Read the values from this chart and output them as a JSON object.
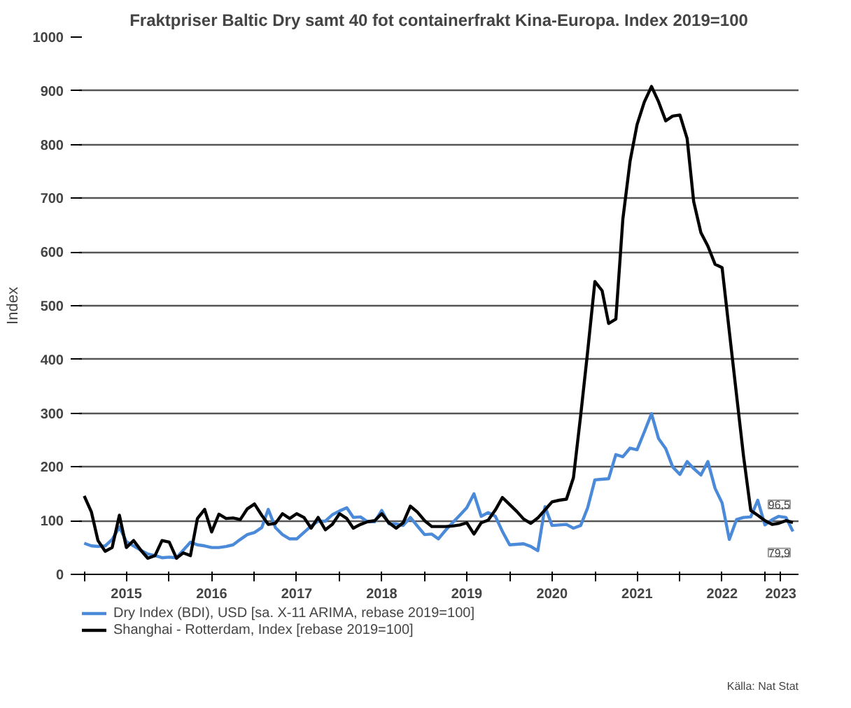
{
  "chart_data": {
    "type": "line",
    "title": "Fraktpriser Baltic Dry samt 40 fot containerfrakt Kina-Europa. Index 2019=100",
    "ylabel": "Index",
    "x": [
      "2015-01",
      "2015-02",
      "2015-03",
      "2015-04",
      "2015-05",
      "2015-06",
      "2015-07",
      "2015-08",
      "2015-09",
      "2015-10",
      "2015-11",
      "2015-12",
      "2016-01",
      "2016-02",
      "2016-03",
      "2016-04",
      "2016-05",
      "2016-06",
      "2016-07",
      "2016-08",
      "2016-09",
      "2016-10",
      "2016-11",
      "2016-12",
      "2017-01",
      "2017-02",
      "2017-03",
      "2017-04",
      "2017-05",
      "2017-06",
      "2017-07",
      "2017-08",
      "2017-09",
      "2017-10",
      "2017-11",
      "2017-12",
      "2018-01",
      "2018-02",
      "2018-03",
      "2018-04",
      "2018-05",
      "2018-06",
      "2018-07",
      "2018-08",
      "2018-09",
      "2018-10",
      "2018-11",
      "2018-12",
      "2019-01",
      "2019-02",
      "2019-03",
      "2019-04",
      "2019-05",
      "2019-06",
      "2019-07",
      "2019-08",
      "2019-09",
      "2019-10",
      "2019-11",
      "2019-12",
      "2020-01",
      "2020-02",
      "2020-03",
      "2020-04",
      "2020-05",
      "2020-06",
      "2020-07",
      "2020-08",
      "2020-09",
      "2020-10",
      "2020-11",
      "2020-12",
      "2021-01",
      "2021-02",
      "2021-03",
      "2021-04",
      "2021-05",
      "2021-06",
      "2021-07",
      "2021-08",
      "2021-09",
      "2021-10",
      "2021-11",
      "2021-12",
      "2022-01",
      "2022-02",
      "2022-03",
      "2022-04",
      "2022-05",
      "2022-06",
      "2022-07",
      "2022-08",
      "2022-09",
      "2022-10",
      "2022-11",
      "2022-12",
      "2023-01",
      "2023-02",
      "2023-03",
      "2023-04",
      "2023-05"
    ],
    "series": [
      {
        "name": "Dry Index (BDI), USD [sa. X-11 ARIMA, rebase 2019=100]",
        "color": "#4a8ad8",
        "values": [
          58,
          53,
          52,
          53,
          65,
          88,
          61,
          53,
          45,
          38,
          35,
          31,
          32,
          31,
          45,
          60,
          55,
          53,
          50,
          50,
          52,
          55,
          65,
          74,
          78,
          87,
          121,
          87,
          74,
          66,
          66,
          78,
          90,
          99,
          99,
          111,
          118,
          124,
          106,
          107,
          98,
          98,
          119,
          94,
          94,
          91,
          106,
          90,
          74,
          75,
          66,
          82,
          96,
          110,
          124,
          150,
          108,
          115,
          108,
          80,
          55,
          56,
          57,
          52,
          44,
          126,
          91,
          92,
          93,
          86,
          91,
          124,
          176,
          177,
          178,
          223,
          219,
          235,
          232,
          265,
          299,
          253,
          234,
          200,
          186,
          210,
          197,
          185,
          210,
          160,
          133,
          65,
          102,
          106,
          107,
          138,
          92,
          102,
          108,
          106,
          79.9
        ]
      },
      {
        "name": "Shanghai - Rotterdam, Index [rebase 2019=100]",
        "color": "#000000",
        "values": [
          146,
          116,
          63,
          43,
          50,
          110,
          50,
          63,
          45,
          30,
          35,
          63,
          60,
          30,
          40,
          35,
          104,
          121,
          79,
          112,
          104,
          105,
          102,
          122,
          131,
          110,
          93,
          95,
          113,
          104,
          113,
          106,
          86,
          106,
          83,
          93,
          113,
          104,
          86,
          93,
          98,
          100,
          113,
          96,
          86,
          96,
          127,
          116,
          100,
          89,
          89,
          89,
          90,
          92,
          96,
          75,
          96,
          101,
          120,
          143,
          130,
          117,
          103,
          95,
          105,
          120,
          135,
          138,
          140,
          180,
          296,
          415,
          545,
          528,
          467,
          475,
          661,
          769,
          837,
          879,
          908,
          880,
          844,
          853,
          855,
          811,
          694,
          636,
          611,
          577,
          571,
          452,
          334,
          220,
          119,
          110,
          100,
          93,
          95,
          100,
          96.5
        ]
      }
    ],
    "xlim": [
      "2014-12-10",
      "2023-05-25"
    ],
    "xticks": [
      {
        "value": "2015-01",
        "label": null
      },
      {
        "value": "2016-01",
        "label": null
      },
      {
        "value": "2017-01",
        "label": null
      },
      {
        "value": "2018-01",
        "label": null
      },
      {
        "value": "2019-01",
        "label": null
      },
      {
        "value": "2020-01",
        "label": null
      },
      {
        "value": "2021-01",
        "label": null
      },
      {
        "value": "2022-01",
        "label": null
      },
      {
        "value": "2023-01",
        "label": null
      },
      {
        "value": "2015-07-01",
        "label": "2015"
      },
      {
        "value": "2016-07-01",
        "label": "2016"
      },
      {
        "value": "2017-07-01",
        "label": "2017"
      },
      {
        "value": "2018-07-01",
        "label": "2018"
      },
      {
        "value": "2019-07-01",
        "label": "2019"
      },
      {
        "value": "2020-07-01",
        "label": "2020"
      },
      {
        "value": "2021-07-01",
        "label": "2021"
      },
      {
        "value": "2022-07-01",
        "label": "2022"
      },
      {
        "value": "2023-03-10",
        "label": "2023"
      }
    ],
    "ylim": [
      0,
      1000
    ],
    "yticks": [
      0,
      100,
      200,
      300,
      400,
      500,
      600,
      700,
      800,
      900,
      1000
    ],
    "grid": "y",
    "legend": "bottom",
    "annotations": [
      {
        "text": "96,5",
        "x": "2023-05",
        "y": 96.5
      },
      {
        "text": "79,9",
        "x": "2023-05",
        "y": 79.9
      },
      "Källa: Nat Stat"
    ]
  }
}
